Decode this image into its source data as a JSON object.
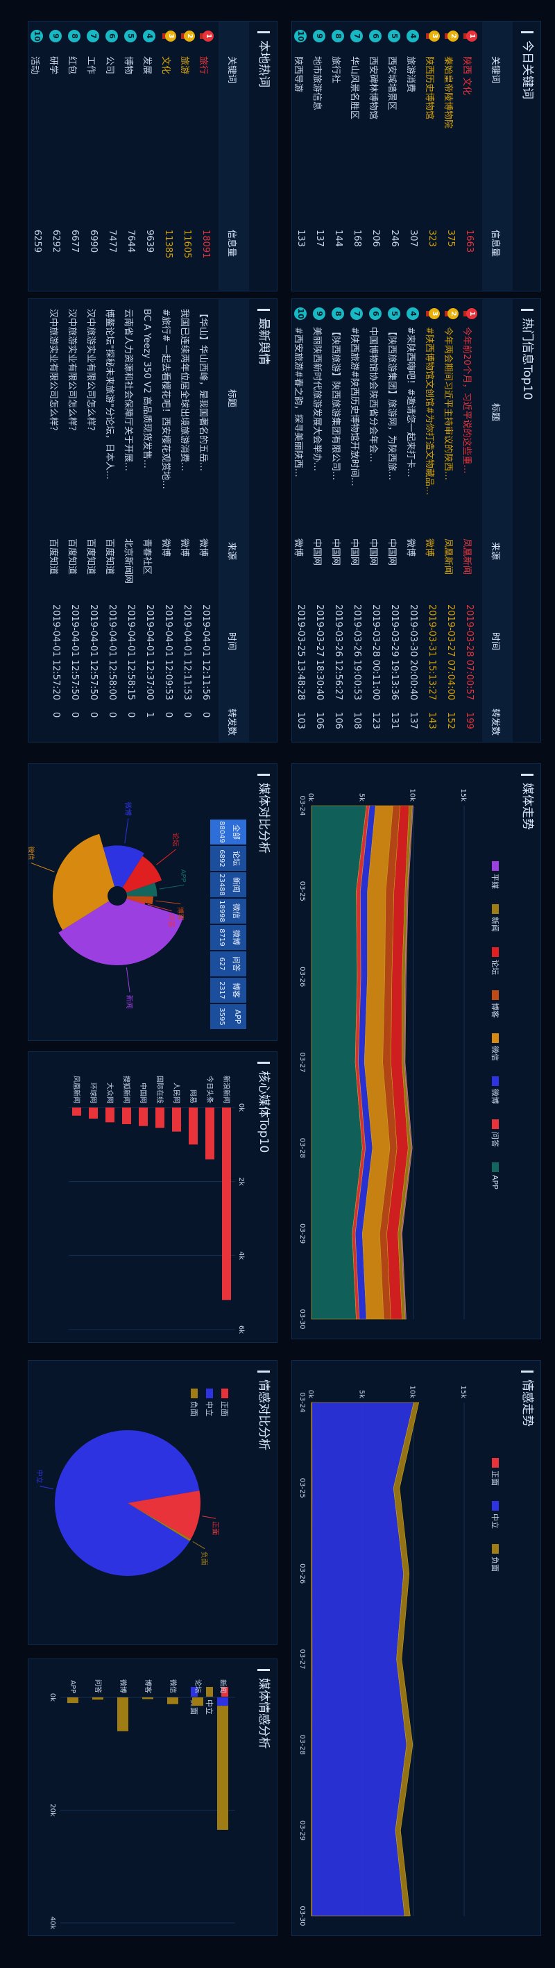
{
  "colors": {
    "gold": "#d4a106",
    "red": "#e8333b",
    "teal": "#18b9c5",
    "blue": "#2d33e0",
    "green": "#12665d",
    "olive": "#a07c14"
  },
  "panels": {
    "hot_keywords": "今日关键词",
    "local_hot": "本地热词",
    "hot_info": "热门信息Top10",
    "latest_info": "最新舆情",
    "media_trend": "媒体走势",
    "media_compare": "媒体对比分析",
    "sentiment_trend": "情感走势",
    "core_media": "核心媒体Top10",
    "sentiment_compare": "情感对比分析",
    "media_sentiment": "媒体情感分析"
  },
  "hot_keywords": {
    "headers": {
      "word": "关键词",
      "count": "信息量"
    },
    "rows": [
      {
        "rank": "1",
        "word": "陕西 文化",
        "count": "1663"
      },
      {
        "rank": "2",
        "word": "秦始皇帝陵博物院",
        "count": "375"
      },
      {
        "rank": "3",
        "word": "陕西历史博物馆",
        "count": "323"
      },
      {
        "rank": "4",
        "word": "旅游消费",
        "count": "307"
      },
      {
        "rank": "5",
        "word": "西安城墙景区",
        "count": "246"
      },
      {
        "rank": "6",
        "word": "西安碑林博物馆",
        "count": "206"
      },
      {
        "rank": "7",
        "word": "华山风景名胜区",
        "count": "168"
      },
      {
        "rank": "8",
        "word": "旅行社",
        "count": "144"
      },
      {
        "rank": "9",
        "word": "地市旅游信息",
        "count": "137"
      },
      {
        "rank": "10",
        "word": "陕西导游",
        "count": "133"
      }
    ]
  },
  "local_hot": {
    "headers": {
      "word": "关键词",
      "count": "信息量"
    },
    "rows": [
      {
        "rank": "1",
        "word": "旅行",
        "count": "18091"
      },
      {
        "rank": "2",
        "word": "旅游",
        "count": "11605"
      },
      {
        "rank": "3",
        "word": "文化",
        "count": "11385"
      },
      {
        "rank": "4",
        "word": "发展",
        "count": "9639"
      },
      {
        "rank": "5",
        "word": "博物",
        "count": "7644"
      },
      {
        "rank": "6",
        "word": "公司",
        "count": "7477"
      },
      {
        "rank": "7",
        "word": "工作",
        "count": "6990"
      },
      {
        "rank": "8",
        "word": "红包",
        "count": "6677"
      },
      {
        "rank": "9",
        "word": "研学",
        "count": "6292"
      },
      {
        "rank": "10",
        "word": "活动",
        "count": "6259"
      }
    ]
  },
  "hot_info": {
    "headers": {
      "title": "标题",
      "source": "来源",
      "time": "时间",
      "reposts": "转发数"
    },
    "rows": [
      {
        "rank": "1",
        "title": "今年前20个月，习近平说的这些重…",
        "source": "凤凰新闻",
        "time": "2019-03-28 07:00:57",
        "reposts": "199"
      },
      {
        "rank": "2",
        "title": "今年两会期间习近平主持审议的陕西…",
        "source": "凤凰新闻",
        "time": "2019-03-27 07:04:00",
        "reposts": "152"
      },
      {
        "rank": "3",
        "title": "#陕西博物馆文创馆#为你打造文物藏品…",
        "source": "微博",
        "time": "2019-03-31 15:13:27",
        "reposts": "143"
      },
      {
        "rank": "4",
        "title": "#来陕西嗨吧！#邀请您一起来打卡…",
        "source": "微博",
        "time": "2019-03-30 20:00:40",
        "reposts": "137"
      },
      {
        "rank": "5",
        "title": "【陕西旅游集团】旅游网，为陕西旅…",
        "source": "中国网",
        "time": "2019-03-29 19:13:36",
        "reposts": "131"
      },
      {
        "rank": "6",
        "title": "中国博物馆协会陕西省分会年会…",
        "source": "中国网",
        "time": "2019-03-28 00:11:00",
        "reposts": "123"
      },
      {
        "rank": "7",
        "title": "#陕西旅游#陕西历史博物馆开放时间…",
        "source": "中国网",
        "time": "2019-03-26 19:00:53",
        "reposts": "108"
      },
      {
        "rank": "8",
        "title": "【陕西旅游】陕西旅游集团有限公司…",
        "source": "中国网",
        "time": "2019-03-26 12:56:27",
        "reposts": "106"
      },
      {
        "rank": "9",
        "title": "美丽陕西新时代旅游发展大会举办…",
        "source": "中国网",
        "time": "2019-03-27 18:30:40",
        "reposts": "106"
      },
      {
        "rank": "10",
        "title": "#西安旅游#春之韵，探寻美丽陕西…",
        "source": "微博",
        "time": "2019-03-25 13:48:28",
        "reposts": "103"
      }
    ]
  },
  "latest_info": {
    "headers": {
      "title": "标题",
      "source": "来源",
      "time": "时间",
      "reposts": "转发数"
    },
    "rows": [
      {
        "title": "【华山】华山西峰，是我国著名的五岳…",
        "source": "微博",
        "time": "2019-04-01 12:11:56",
        "reposts": "0"
      },
      {
        "title": "我国已连续两年位居全球出境旅游消费…",
        "source": "微博",
        "time": "2019-04-01 12:11:53",
        "reposts": "0"
      },
      {
        "title": "#旅行# 一起去看樱花吧！西安樱花观赏地…",
        "source": "微博",
        "time": "2019-04-01 12:09:53",
        "reposts": "0"
      },
      {
        "title": "BC A Yeezy 350 V2 高品质现货发售…",
        "source": "青春社区",
        "time": "2019-04-01 12:37:00",
        "reposts": "1"
      },
      {
        "title": "云南省人力资源和社会保障厅关于开展…",
        "source": "北京新闻网",
        "time": "2019-04-01 12:58:15",
        "reposts": "0"
      },
      {
        "title": "博鳌论坛\"探秘未来旅游\"分论坛，日本人…",
        "source": "百度知道",
        "time": "2019-04-01 12:58:00",
        "reposts": "0"
      },
      {
        "title": "汉中旅游实业有限公司怎么样？",
        "source": "百度知道",
        "time": "2019-04-01 12:57:50",
        "reposts": "0"
      },
      {
        "title": "汉中旅游实业有限公司怎么样？",
        "source": "百度知道",
        "time": "2019-04-01 12:57:50",
        "reposts": "0"
      },
      {
        "title": "汉中旅游实业有限公司怎么样？",
        "source": "百度知道",
        "time": "2019-04-01 12:57:20",
        "reposts": "0"
      }
    ]
  },
  "media_trend": {
    "legend": [
      {
        "name": "平媒",
        "color": "#9b3fe0"
      },
      {
        "name": "新闻",
        "color": "#a07c14"
      },
      {
        "name": "论坛",
        "color": "#e02020"
      },
      {
        "name": "博客",
        "color": "#c04a14"
      },
      {
        "name": "微信",
        "color": "#d88a10"
      },
      {
        "name": "微博",
        "color": "#2d33e0"
      },
      {
        "name": "问答",
        "color": "#e8333b"
      },
      {
        "name": "APP",
        "color": "#12665d"
      }
    ]
  },
  "media_compare": {
    "table": [
      {
        "name": "全部",
        "value": "88049"
      },
      {
        "name": "论坛",
        "value": "6892"
      },
      {
        "name": "新闻",
        "value": "23488"
      },
      {
        "name": "微信",
        "value": "18998"
      },
      {
        "name": "微博",
        "value": "8719"
      },
      {
        "name": "问答",
        "value": "627"
      },
      {
        "name": "博客",
        "value": "2317"
      },
      {
        "name": "APP",
        "value": "3595"
      }
    ]
  },
  "core_media": {
    "tick_suffix": "k"
  },
  "sentiment_trend": {
    "legend": [
      {
        "name": "正面",
        "color": "#e8333b"
      },
      {
        "name": "中立",
        "color": "#2d33e0"
      },
      {
        "name": "负面",
        "color": "#a07c14"
      }
    ]
  },
  "sentiment_compare": {
    "legend": [
      {
        "name": "正面",
        "color": "#e8333b"
      },
      {
        "name": "中立",
        "color": "#2d33e0"
      },
      {
        "name": "负面",
        "color": "#a07c14"
      }
    ]
  },
  "media_sentiment": {
    "legend": [
      {
        "name": "正面",
        "color": "#e8333b"
      },
      {
        "name": "中立",
        "color": "#a07c14"
      },
      {
        "name": "负面",
        "color": "#2d33e0"
      }
    ]
  },
  "chart_data": [
    {
      "type": "area",
      "name": "media_trend",
      "x": [
        "03-24",
        "03-25",
        "03-26",
        "03-27",
        "03-28",
        "03-29",
        "03-30"
      ],
      "ylim": [
        0,
        15000
      ],
      "yticks": [
        "0k",
        "5k",
        "10k",
        "15k"
      ],
      "series": [
        {
          "name": "APP",
          "values": [
            5400,
            4400,
            4500,
            4300,
            5000,
            4000,
            4400
          ]
        },
        {
          "name": "问答",
          "values": [
            300,
            400,
            350,
            300,
            300,
            300,
            300
          ]
        },
        {
          "name": "微博",
          "values": [
            600,
            700,
            650,
            600,
            700,
            700,
            700
          ]
        },
        {
          "name": "微信",
          "values": [
            1700,
            1800,
            1700,
            1800,
            1700,
            1700,
            1700
          ]
        },
        {
          "name": "博客",
          "values": [
            700,
            800,
            700,
            800,
            700,
            700,
            700
          ]
        },
        {
          "name": "论坛",
          "values": [
            900,
            1100,
            1000,
            1100,
            1100,
            1100,
            1100
          ]
        },
        {
          "name": "新闻",
          "values": [
            300,
            200,
            300,
            200,
            300,
            300,
            300
          ]
        },
        {
          "name": "平媒",
          "values": [
            100,
            100,
            100,
            100,
            100,
            100,
            100
          ]
        }
      ]
    },
    {
      "type": "pie",
      "name": "media_compare",
      "labels": [
        "新闻",
        "微信",
        "微博",
        "论坛",
        "APP",
        "博客",
        "问答"
      ],
      "values": [
        23488,
        18998,
        8719,
        6892,
        3595,
        2317,
        627
      ],
      "colors": [
        "#9b3fe0",
        "#d88a10",
        "#2d33e0",
        "#e02020",
        "#12665d",
        "#c04a14",
        "#e8333b"
      ]
    },
    {
      "type": "area",
      "name": "sentiment_trend",
      "x": [
        "03-24",
        "03-25",
        "03-26",
        "03-27",
        "03-28",
        "03-29",
        "03-30"
      ],
      "ylim": [
        0,
        15000
      ],
      "yticks": [
        "0k",
        "5k",
        "10k",
        "15k"
      ],
      "series": [
        {
          "name": "正面",
          "values": [
            50,
            60,
            50,
            60,
            50,
            50,
            50
          ]
        },
        {
          "name": "中立",
          "values": [
            10000,
            8000,
            9000,
            8300,
            9300,
            8200,
            9100
          ]
        },
        {
          "name": "负面",
          "values": [
            500,
            600,
            550,
            500,
            600,
            500,
            550
          ]
        }
      ]
    },
    {
      "type": "bar",
      "name": "core_media",
      "categories": [
        "新浪新闻",
        "今日头条",
        "网易",
        "人民网",
        "国际在线",
        "中国网",
        "搜狐新闻",
        "大众网",
        "环球网",
        "凤凰新闻"
      ],
      "values": [
        5200,
        1400,
        1000,
        650,
        550,
        500,
        450,
        400,
        300,
        220
      ],
      "ylim": [
        0,
        6000
      ],
      "yticks": [
        "0k",
        "2k",
        "4k",
        "6k"
      ]
    },
    {
      "type": "pie",
      "name": "sentiment_compare",
      "labels": [
        "中立",
        "正面",
        "负面"
      ],
      "values": [
        88.5,
        11,
        0.5
      ],
      "colors": [
        "#2d33e0",
        "#e8333b",
        "#a07c14"
      ]
    },
    {
      "type": "bar",
      "name": "media_sentiment",
      "categories": [
        "新闻",
        "论坛",
        "微信",
        "博客",
        "微博",
        "问答",
        "APP"
      ],
      "series": [
        {
          "name": "负面",
          "values": [
            1500,
            0,
            0,
            0,
            0,
            0,
            0
          ]
        },
        {
          "name": "中立",
          "values": [
            22000,
            1500,
            1200,
            300,
            6000,
            400,
            1000
          ]
        },
        {
          "name": "正面",
          "values": [
            0,
            0,
            0,
            0,
            0,
            0,
            0
          ]
        }
      ],
      "ylim": [
        0,
        40000
      ],
      "yticks": [
        "0k",
        "20k",
        "40k"
      ]
    }
  ]
}
